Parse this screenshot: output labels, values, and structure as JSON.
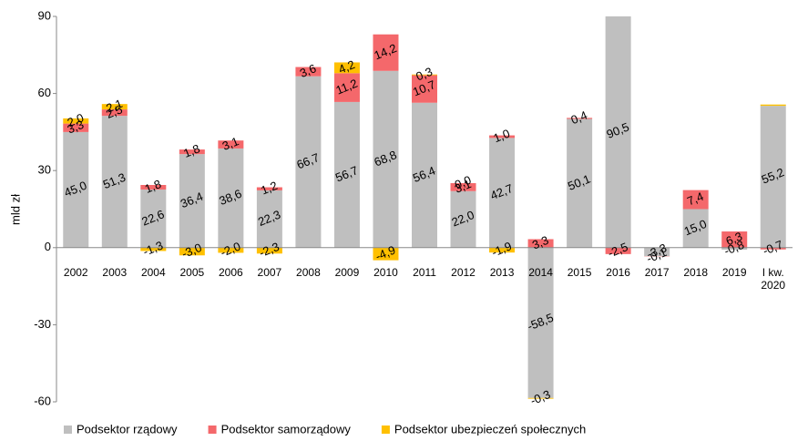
{
  "chart_data": {
    "type": "stacked_bar",
    "y_label": "mld zł",
    "categories": [
      "2002",
      "2003",
      "2004",
      "2005",
      "2006",
      "2007",
      "2008",
      "2009",
      "2010",
      "2011",
      "2012",
      "2013",
      "2014",
      "2015",
      "2016",
      "2017",
      "2018",
      "2019",
      "I kw. 2020"
    ],
    "series": [
      {
        "name": "Podsektor rządowy",
        "color": "#bfbfbf",
        "values": [
          45.0,
          51.3,
          22.6,
          36.4,
          38.6,
          22.3,
          66.7,
          56.7,
          68.8,
          56.4,
          22.0,
          42.7,
          -58.5,
          50.1,
          90.5,
          -3.3,
          15.0,
          -0.8,
          55.2
        ],
        "value_labels": [
          "45,0",
          "51,3",
          "22,6",
          "36,4",
          "38,6",
          "22,3",
          "66,7",
          "56,7",
          "68,8",
          "56,4",
          "22,0",
          "42,7",
          "-58,5",
          "50,1",
          "90,5",
          "-3,3",
          "15,0",
          "-0,8",
          "55,2"
        ]
      },
      {
        "name": "Podsektor samorządowy",
        "color": "#f4686b",
        "values": [
          3.3,
          2.5,
          1.8,
          1.8,
          3.1,
          1.2,
          3.6,
          11.2,
          14.2,
          10.7,
          3.1,
          1.0,
          3.3,
          0.4,
          -2.5,
          -0.1,
          7.4,
          6.3,
          -0.7
        ],
        "value_labels": [
          "3,3",
          "2,5",
          "1,8",
          "1,8",
          "3,1",
          "1,2",
          "3,6",
          "11,2",
          "14,2",
          "10,7",
          "3,1",
          "1,0",
          "3,3",
          "0,4",
          "-2,5",
          "-0,1",
          "7,4",
          "6,3",
          "-0,7"
        ]
      },
      {
        "name": "Podsektor ubezpieczeń społecznych",
        "color": "#ffc000",
        "values": [
          2.0,
          2.1,
          -1.3,
          -3.0,
          -2.0,
          -2.3,
          null,
          4.2,
          -4.9,
          0.3,
          0.0,
          -1.9,
          -0.3,
          null,
          null,
          null,
          null,
          null,
          0.5
        ],
        "value_labels": [
          "2,0",
          "2,1",
          "-1,3",
          "-3,0",
          "-2,0",
          "-2,3",
          null,
          "4,2",
          "-4,9",
          "0,3",
          "0,0",
          "-1,9",
          "-0,3",
          null,
          null,
          null,
          null,
          null,
          null
        ]
      }
    ],
    "ylim": [
      -60,
      90
    ],
    "yticks": [
      -60,
      -30,
      0,
      30,
      60,
      90
    ],
    "grid": false,
    "legend": "bottom"
  }
}
